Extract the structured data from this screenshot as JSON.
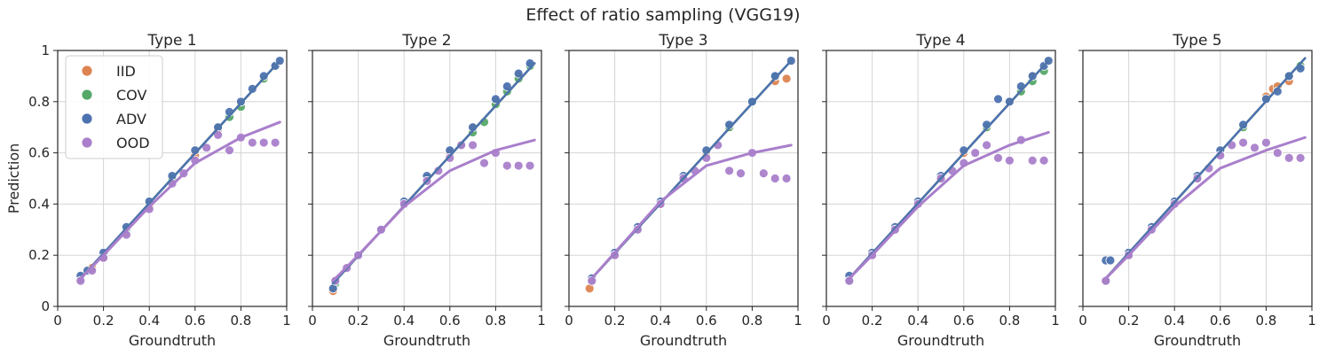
{
  "figure_title": "Effect of ratio sampling (VGG19)",
  "colors": {
    "IID": "#dd8452",
    "COV": "#55a868",
    "ADV": "#4c72b0",
    "OOD": "#a97fcb",
    "grid": "#d5d5d5",
    "axis": "#262626"
  },
  "chart_data": [
    {
      "type": "scatter",
      "title": "Type 1",
      "xlabel": "Groundtruth",
      "ylabel": "Prediction",
      "xlim": [
        0,
        1
      ],
      "ylim": [
        0,
        1
      ],
      "x_ticks": [
        "0",
        "0.2",
        "0.4",
        "0.6",
        "0.8",
        "1"
      ],
      "y_ticks": [
        "0",
        "0.2",
        "0.4",
        "0.6",
        "0.8",
        "1"
      ],
      "grid": true,
      "legend": {
        "position": "top-left",
        "entries": [
          "IID",
          "COV",
          "ADV",
          "OOD"
        ]
      },
      "series": [
        {
          "name": "IID",
          "x": [
            0.1,
            0.15,
            0.2,
            0.3,
            0.4,
            0.5,
            0.6,
            0.7,
            0.8,
            0.9,
            0.95
          ],
          "y": [
            0.11,
            0.15,
            0.19,
            0.29,
            0.39,
            0.49,
            0.59,
            0.69,
            0.79,
            0.89,
            0.94
          ],
          "fit": [
            [
              0.09,
              0.1
            ],
            [
              0.97,
              0.96
            ]
          ]
        },
        {
          "name": "COV",
          "x": [
            0.1,
            0.3,
            0.5,
            0.7,
            0.75,
            0.8,
            0.9,
            0.95
          ],
          "y": [
            0.11,
            0.3,
            0.5,
            0.7,
            0.74,
            0.78,
            0.89,
            0.94
          ],
          "fit": [
            [
              0.09,
              0.1
            ],
            [
              0.97,
              0.96
            ]
          ]
        },
        {
          "name": "ADV",
          "x": [
            0.1,
            0.13,
            0.2,
            0.3,
            0.4,
            0.5,
            0.6,
            0.7,
            0.75,
            0.8,
            0.85,
            0.9,
            0.95,
            0.97
          ],
          "y": [
            0.12,
            0.14,
            0.21,
            0.31,
            0.41,
            0.51,
            0.61,
            0.7,
            0.76,
            0.8,
            0.85,
            0.9,
            0.94,
            0.96
          ],
          "fit": [
            [
              0.09,
              0.1
            ],
            [
              0.97,
              0.96
            ]
          ]
        },
        {
          "name": "OOD",
          "x": [
            0.1,
            0.15,
            0.2,
            0.3,
            0.4,
            0.5,
            0.55,
            0.6,
            0.65,
            0.7,
            0.75,
            0.8,
            0.85,
            0.9,
            0.95
          ],
          "y": [
            0.1,
            0.14,
            0.19,
            0.28,
            0.38,
            0.48,
            0.52,
            0.57,
            0.62,
            0.67,
            0.61,
            0.66,
            0.64,
            0.64,
            0.64
          ],
          "fit": [
            [
              0.09,
              0.1
            ],
            [
              0.2,
              0.2
            ],
            [
              0.4,
              0.39
            ],
            [
              0.6,
              0.56
            ],
            [
              0.8,
              0.66
            ],
            [
              0.97,
              0.72
            ]
          ]
        }
      ]
    },
    {
      "type": "scatter",
      "title": "Type 2",
      "xlabel": "Groundtruth",
      "ylabel": "",
      "xlim": [
        0,
        1
      ],
      "ylim": [
        0,
        1
      ],
      "x_ticks": [
        "0",
        "0.2",
        "0.4",
        "0.6",
        "0.8",
        "1"
      ],
      "y_ticks": [],
      "grid": true,
      "series": [
        {
          "name": "IID",
          "x": [
            0.09,
            0.2,
            0.3,
            0.4,
            0.5,
            0.6,
            0.7,
            0.8,
            0.9
          ],
          "y": [
            0.06,
            0.2,
            0.3,
            0.4,
            0.5,
            0.6,
            0.7,
            0.8,
            0.9
          ],
          "fit": [
            [
              0.09,
              0.09
            ],
            [
              0.97,
              0.95
            ]
          ]
        },
        {
          "name": "COV",
          "x": [
            0.1,
            0.3,
            0.5,
            0.65,
            0.7,
            0.75,
            0.8,
            0.85,
            0.9,
            0.95
          ],
          "y": [
            0.09,
            0.3,
            0.5,
            0.63,
            0.68,
            0.72,
            0.79,
            0.84,
            0.89,
            0.94
          ],
          "fit": [
            [
              0.09,
              0.09
            ],
            [
              0.97,
              0.95
            ]
          ]
        },
        {
          "name": "ADV",
          "x": [
            0.09,
            0.1,
            0.2,
            0.3,
            0.4,
            0.5,
            0.6,
            0.7,
            0.8,
            0.85,
            0.9,
            0.95
          ],
          "y": [
            0.07,
            0.1,
            0.2,
            0.3,
            0.41,
            0.51,
            0.61,
            0.7,
            0.81,
            0.86,
            0.91,
            0.95
          ],
          "fit": [
            [
              0.09,
              0.09
            ],
            [
              0.97,
              0.95
            ]
          ]
        },
        {
          "name": "OOD",
          "x": [
            0.1,
            0.15,
            0.2,
            0.3,
            0.4,
            0.5,
            0.55,
            0.6,
            0.65,
            0.7,
            0.75,
            0.8,
            0.85,
            0.9,
            0.95
          ],
          "y": [
            0.1,
            0.15,
            0.2,
            0.3,
            0.4,
            0.49,
            0.53,
            0.58,
            0.63,
            0.63,
            0.56,
            0.6,
            0.55,
            0.55,
            0.55
          ],
          "fit": [
            [
              0.09,
              0.1
            ],
            [
              0.2,
              0.2
            ],
            [
              0.4,
              0.39
            ],
            [
              0.6,
              0.53
            ],
            [
              0.8,
              0.61
            ],
            [
              0.97,
              0.65
            ]
          ]
        }
      ]
    },
    {
      "type": "scatter",
      "title": "Type 3",
      "xlabel": "Groundtruth",
      "ylabel": "",
      "xlim": [
        0,
        1
      ],
      "ylim": [
        0,
        1
      ],
      "x_ticks": [
        "0",
        "0.2",
        "0.4",
        "0.6",
        "0.8",
        "1"
      ],
      "y_ticks": [],
      "grid": true,
      "series": [
        {
          "name": "IID",
          "x": [
            0.09,
            0.2,
            0.3,
            0.4,
            0.5,
            0.6,
            0.7,
            0.8,
            0.9,
            0.95
          ],
          "y": [
            0.07,
            0.2,
            0.3,
            0.4,
            0.5,
            0.6,
            0.7,
            0.8,
            0.88,
            0.89
          ],
          "fit": [
            [
              0.09,
              0.1
            ],
            [
              0.97,
              0.96
            ]
          ]
        },
        {
          "name": "COV",
          "x": [
            0.1,
            0.3,
            0.5,
            0.7,
            0.8,
            0.9
          ],
          "y": [
            0.1,
            0.3,
            0.5,
            0.7,
            0.8,
            0.9
          ],
          "fit": [
            [
              0.09,
              0.1
            ],
            [
              0.97,
              0.96
            ]
          ]
        },
        {
          "name": "ADV",
          "x": [
            0.1,
            0.2,
            0.3,
            0.4,
            0.5,
            0.6,
            0.7,
            0.8,
            0.9,
            0.97
          ],
          "y": [
            0.11,
            0.21,
            0.31,
            0.41,
            0.51,
            0.61,
            0.71,
            0.8,
            0.9,
            0.96
          ],
          "fit": [
            [
              0.09,
              0.1
            ],
            [
              0.97,
              0.96
            ]
          ]
        },
        {
          "name": "OOD",
          "x": [
            0.1,
            0.2,
            0.3,
            0.4,
            0.5,
            0.55,
            0.6,
            0.65,
            0.7,
            0.75,
            0.8,
            0.85,
            0.9,
            0.95
          ],
          "y": [
            0.1,
            0.2,
            0.3,
            0.4,
            0.5,
            0.53,
            0.58,
            0.63,
            0.53,
            0.52,
            0.6,
            0.52,
            0.5,
            0.5
          ],
          "fit": [
            [
              0.09,
              0.1
            ],
            [
              0.2,
              0.21
            ],
            [
              0.4,
              0.41
            ],
            [
              0.6,
              0.55
            ],
            [
              0.8,
              0.6
            ],
            [
              0.97,
              0.63
            ]
          ]
        }
      ]
    },
    {
      "type": "scatter",
      "title": "Type 4",
      "xlabel": "Groundtruth",
      "ylabel": "",
      "xlim": [
        0,
        1
      ],
      "ylim": [
        0,
        1
      ],
      "x_ticks": [
        "0",
        "0.2",
        "0.4",
        "0.6",
        "0.8",
        "1"
      ],
      "y_ticks": [],
      "grid": true,
      "series": [
        {
          "name": "IID",
          "x": [
            0.1,
            0.2,
            0.3,
            0.4,
            0.5,
            0.6,
            0.7,
            0.8,
            0.9
          ],
          "y": [
            0.1,
            0.2,
            0.3,
            0.4,
            0.5,
            0.6,
            0.7,
            0.8,
            0.9
          ],
          "fit": [
            [
              0.09,
              0.1
            ],
            [
              0.97,
              0.96
            ]
          ]
        },
        {
          "name": "COV",
          "x": [
            0.1,
            0.3,
            0.5,
            0.7,
            0.85,
            0.9,
            0.95
          ],
          "y": [
            0.1,
            0.3,
            0.5,
            0.7,
            0.84,
            0.88,
            0.92
          ],
          "fit": [
            [
              0.09,
              0.1
            ],
            [
              0.97,
              0.96
            ]
          ]
        },
        {
          "name": "ADV",
          "x": [
            0.1,
            0.2,
            0.3,
            0.4,
            0.5,
            0.6,
            0.7,
            0.75,
            0.8,
            0.85,
            0.9,
            0.95,
            0.97
          ],
          "y": [
            0.12,
            0.21,
            0.31,
            0.41,
            0.51,
            0.61,
            0.71,
            0.81,
            0.8,
            0.86,
            0.9,
            0.94,
            0.96
          ],
          "fit": [
            [
              0.09,
              0.1
            ],
            [
              0.97,
              0.96
            ]
          ]
        },
        {
          "name": "OOD",
          "x": [
            0.1,
            0.2,
            0.3,
            0.4,
            0.5,
            0.55,
            0.6,
            0.65,
            0.7,
            0.75,
            0.8,
            0.85,
            0.9,
            0.95
          ],
          "y": [
            0.1,
            0.2,
            0.3,
            0.4,
            0.5,
            0.53,
            0.56,
            0.6,
            0.63,
            0.58,
            0.57,
            0.65,
            0.57,
            0.57
          ],
          "fit": [
            [
              0.09,
              0.1
            ],
            [
              0.2,
              0.2
            ],
            [
              0.4,
              0.39
            ],
            [
              0.6,
              0.55
            ],
            [
              0.8,
              0.63
            ],
            [
              0.97,
              0.68
            ]
          ]
        }
      ]
    },
    {
      "type": "scatter",
      "title": "Type 5",
      "xlabel": "Groundtruth",
      "ylabel": "",
      "xlim": [
        0,
        1
      ],
      "ylim": [
        0,
        1
      ],
      "x_ticks": [
        "0",
        "0.2",
        "0.4",
        "0.6",
        "0.8",
        "1"
      ],
      "y_ticks": [],
      "grid": true,
      "series": [
        {
          "name": "IID",
          "x": [
            0.1,
            0.2,
            0.3,
            0.4,
            0.5,
            0.6,
            0.7,
            0.8,
            0.83,
            0.85,
            0.9
          ],
          "y": [
            0.1,
            0.2,
            0.3,
            0.4,
            0.5,
            0.6,
            0.7,
            0.82,
            0.85,
            0.86,
            0.88
          ],
          "fit": [
            [
              0.09,
              0.1
            ],
            [
              0.97,
              0.97
            ]
          ]
        },
        {
          "name": "COV",
          "x": [
            0.1,
            0.3,
            0.5,
            0.7,
            0.9,
            0.95
          ],
          "y": [
            0.1,
            0.3,
            0.5,
            0.7,
            0.9,
            0.94
          ],
          "fit": [
            [
              0.09,
              0.1
            ],
            [
              0.97,
              0.97
            ]
          ]
        },
        {
          "name": "ADV",
          "x": [
            0.1,
            0.12,
            0.2,
            0.3,
            0.4,
            0.5,
            0.6,
            0.7,
            0.8,
            0.85,
            0.9,
            0.95
          ],
          "y": [
            0.18,
            0.18,
            0.21,
            0.31,
            0.41,
            0.51,
            0.61,
            0.71,
            0.81,
            0.84,
            0.9,
            0.93
          ],
          "fit": [
            [
              0.09,
              0.1
            ],
            [
              0.97,
              0.97
            ]
          ]
        },
        {
          "name": "OOD",
          "x": [
            0.1,
            0.2,
            0.3,
            0.4,
            0.5,
            0.55,
            0.6,
            0.65,
            0.7,
            0.75,
            0.8,
            0.85,
            0.9,
            0.95
          ],
          "y": [
            0.1,
            0.2,
            0.3,
            0.4,
            0.5,
            0.54,
            0.59,
            0.63,
            0.64,
            0.62,
            0.64,
            0.6,
            0.58,
            0.58
          ],
          "fit": [
            [
              0.09,
              0.1
            ],
            [
              0.2,
              0.2
            ],
            [
              0.4,
              0.39
            ],
            [
              0.6,
              0.54
            ],
            [
              0.8,
              0.61
            ],
            [
              0.97,
              0.66
            ]
          ]
        }
      ]
    }
  ]
}
